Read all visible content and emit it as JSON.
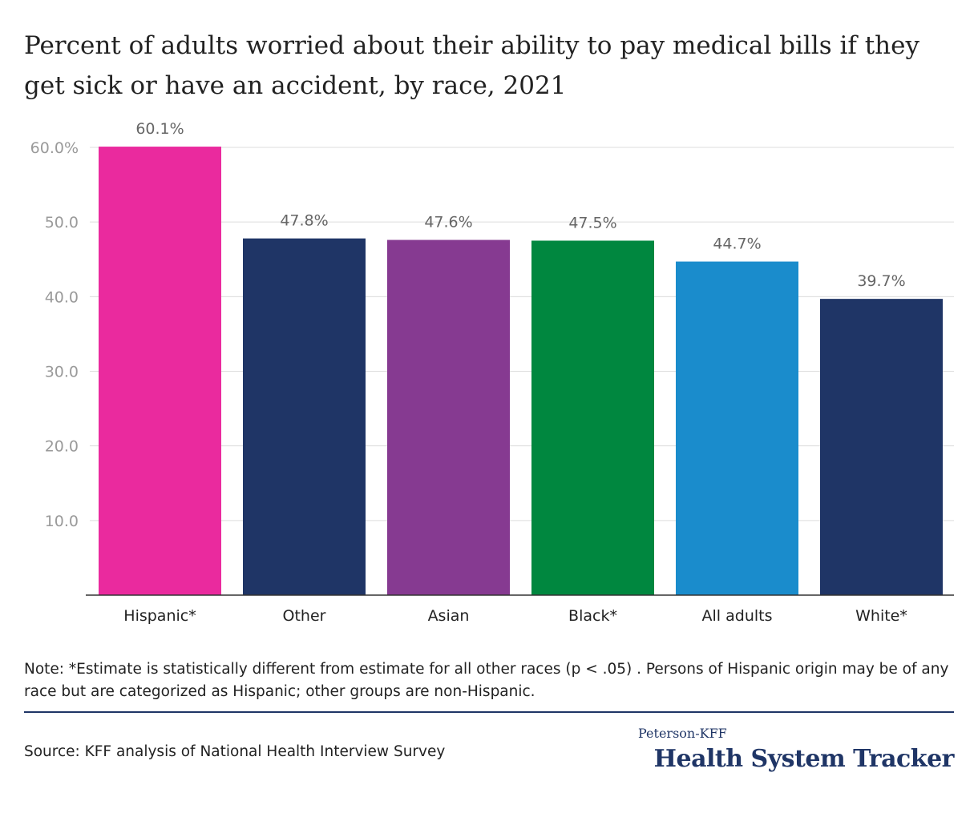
{
  "title": "Percent of adults worried about their ability to pay medical bills if they get sick or have an accident, by race, 2021",
  "chart_data": {
    "type": "bar",
    "categories": [
      "Hispanic*",
      "Other",
      "Asian",
      "Black*",
      "All adults",
      "White*"
    ],
    "values": [
      60.1,
      47.8,
      47.6,
      47.5,
      44.7,
      39.7
    ],
    "value_labels": [
      "60.1%",
      "47.8%",
      "47.6%",
      "47.5%",
      "44.7%",
      "39.7%"
    ],
    "colors": [
      "#ea2a9e",
      "#1f3566",
      "#863a91",
      "#00873f",
      "#1a8ccc",
      "#1f3566"
    ],
    "ylim": [
      0,
      60
    ],
    "yticks": [
      10,
      20,
      30,
      40,
      50,
      60
    ],
    "ytick_labels": [
      "10.0",
      "20.0",
      "30.0",
      "40.0",
      "50.0",
      "60.0%"
    ],
    "xlabel": "",
    "ylabel": "",
    "grid": true
  },
  "note": "Note: *Estimate is statistically different from estimate for all other races (p < .05) . Persons of Hispanic origin may be of any race but are categorized as Hispanic; other groups are non-Hispanic.",
  "source": "Source: KFF analysis of National Health Interview Survey",
  "logo": {
    "top_line": "Peterson-KFF",
    "bottom_line": "Health System Tracker"
  },
  "colors": {
    "accent": "#1f3566",
    "grid": "#dcdcdc",
    "axis": "#333333"
  }
}
